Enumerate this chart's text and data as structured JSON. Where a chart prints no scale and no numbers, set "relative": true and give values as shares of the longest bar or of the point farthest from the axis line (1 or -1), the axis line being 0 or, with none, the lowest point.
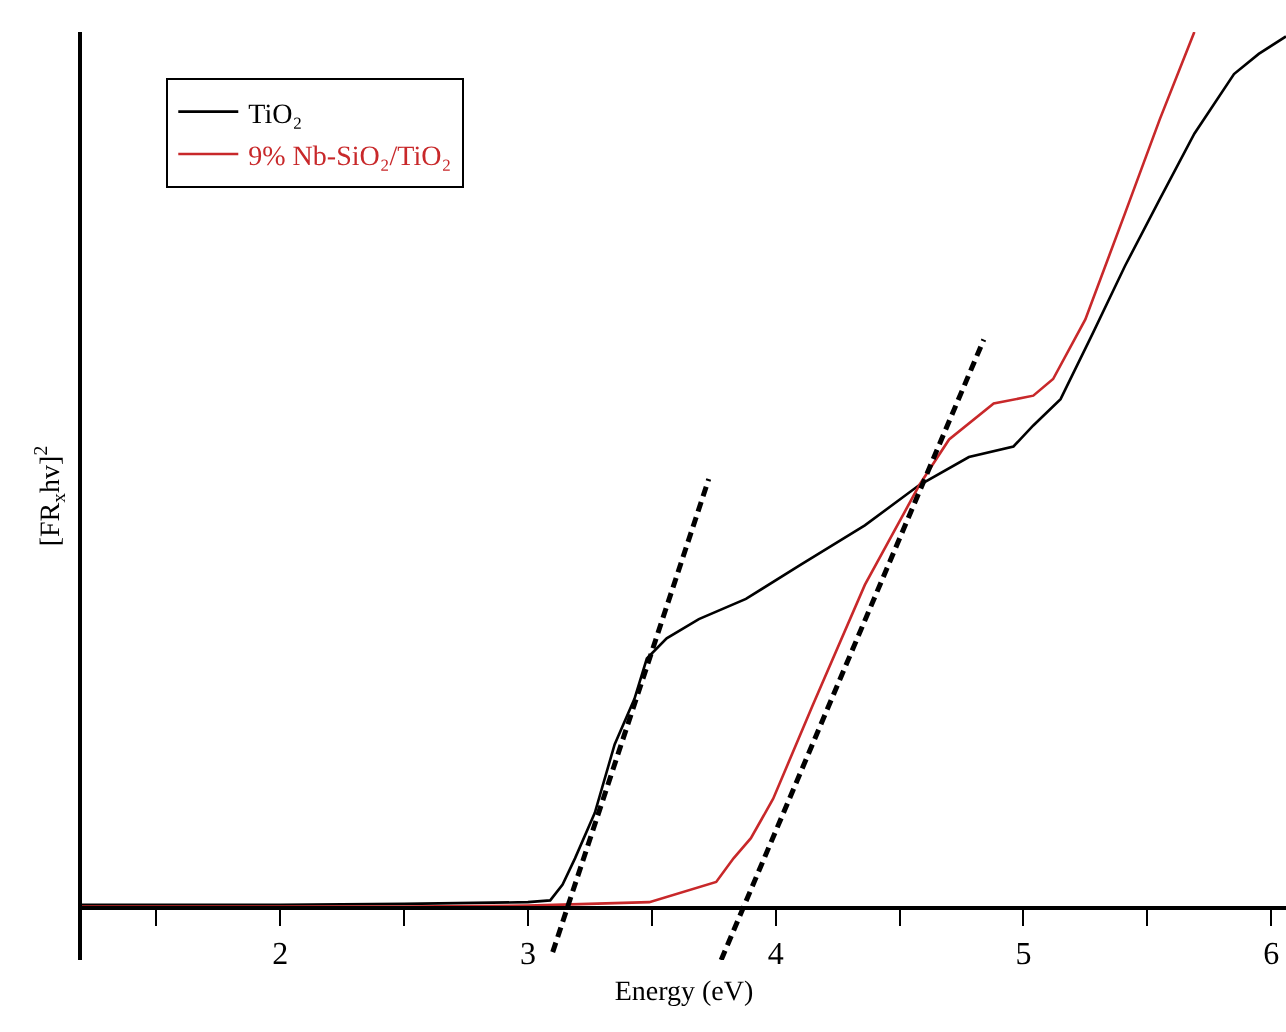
{
  "chart_data": {
    "type": "line",
    "xlabel": "Energy (eV)",
    "ylabel": "[FR$_{x}$hv]$^{2}$",
    "relative": true,
    "xlim": [
      1.2,
      6.06
    ],
    "xticks": [
      {
        "value": 1.5,
        "label": null
      },
      2,
      {
        "value": 2.5,
        "label": null
      },
      3,
      {
        "value": 3.5,
        "label": null
      },
      4,
      {
        "value": 4.5,
        "label": null
      },
      5,
      {
        "value": 5.5,
        "label": null
      },
      6
    ],
    "grid": false,
    "legend": "top left",
    "marker": "none",
    "line_style": "solid",
    "series": [
      {
        "name": "TiO₂",
        "color": "#000000",
        "x": [
          1.2,
          2.0,
          2.5,
          3.0,
          3.09,
          3.14,
          3.19,
          3.27,
          3.35,
          3.43,
          3.48,
          3.56,
          3.69,
          3.88,
          4.1,
          4.36,
          4.58,
          4.78,
          4.96,
          5.04,
          5.15,
          5.28,
          5.41,
          5.55,
          5.69,
          5.85,
          5.95,
          6.06
        ],
        "values": [
          0.004,
          0.004,
          0.005,
          0.007,
          0.009,
          0.027,
          0.057,
          0.109,
          0.187,
          0.239,
          0.285,
          0.308,
          0.33,
          0.353,
          0.392,
          0.437,
          0.483,
          0.515,
          0.527,
          0.551,
          0.581,
          0.656,
          0.733,
          0.809,
          0.884,
          0.952,
          0.975,
          0.995
        ]
      },
      {
        "name": "9% Nb-SiO₂/TiO₂",
        "color": "#c8282a",
        "x": [
          1.2,
          2.0,
          2.5,
          3.0,
          3.49,
          3.76,
          3.83,
          3.9,
          3.99,
          4.15,
          4.36,
          4.58,
          4.7,
          4.88,
          5.04,
          5.12,
          5.25,
          5.41,
          5.55,
          5.69
        ],
        "values": [
          0.002,
          0.002,
          0.002,
          0.003,
          0.007,
          0.03,
          0.057,
          0.08,
          0.125,
          0.232,
          0.369,
          0.483,
          0.535,
          0.576,
          0.585,
          0.604,
          0.672,
          0.793,
          0.9,
          1.0
        ]
      },
      {
        "color": "#000000",
        "line_style": "dashed",
        "x": [
          3.1,
          3.73
        ],
        "values": [
          -0.05,
          0.49
        ]
      },
      {
        "color": "#000000",
        "line_style": "dashed",
        "x": [
          3.78,
          4.84
        ],
        "values": [
          -0.059,
          0.649
        ]
      }
    ]
  }
}
